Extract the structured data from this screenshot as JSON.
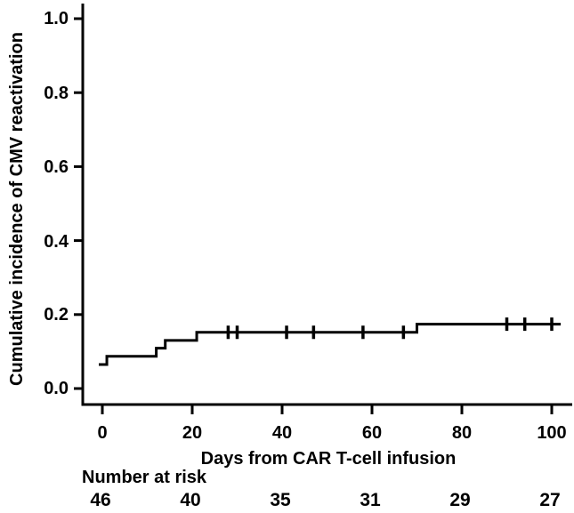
{
  "figure": {
    "background": "#ffffff",
    "ink": "#000000"
  },
  "chart_data": {
    "type": "line",
    "subtype": "cumulative-incidence-step-curve",
    "title": "",
    "xlabel": "Days from CAR T-cell infusion",
    "ylabel": "Cumulative incidence of CMV reactivation",
    "xlim": [
      0,
      104
    ],
    "ylim": [
      0.0,
      1.0
    ],
    "x_ticks": [
      0,
      20,
      40,
      60,
      80,
      100
    ],
    "x_tick_labels": [
      "0",
      "20",
      "40",
      "60",
      "80",
      "100"
    ],
    "y_ticks": [
      0.0,
      0.2,
      0.4,
      0.6,
      0.8,
      1.0
    ],
    "y_tick_labels_top_to_bottom": [
      "1.0",
      "0.8",
      "0.6",
      "0.4",
      "0.2",
      "0.0"
    ],
    "grid": "off",
    "legend": "none",
    "series": [
      {
        "name": "CMV reactivation",
        "color": "#000000",
        "steps": [
          [
            0,
            0.065
          ],
          [
            1,
            0.087
          ],
          [
            12,
            0.109
          ],
          [
            14,
            0.13
          ],
          [
            21,
            0.152
          ],
          [
            70,
            0.174
          ]
        ],
        "end_x": 102,
        "censor_marks_x": [
          28,
          30,
          41,
          47,
          58,
          67,
          90,
          94,
          100
        ]
      }
    ],
    "at_risk": {
      "label": "Number at risk",
      "times": [
        0,
        20,
        40,
        60,
        80,
        100
      ],
      "counts": [
        "46",
        "40",
        "35",
        "31",
        "29",
        "27"
      ]
    }
  }
}
